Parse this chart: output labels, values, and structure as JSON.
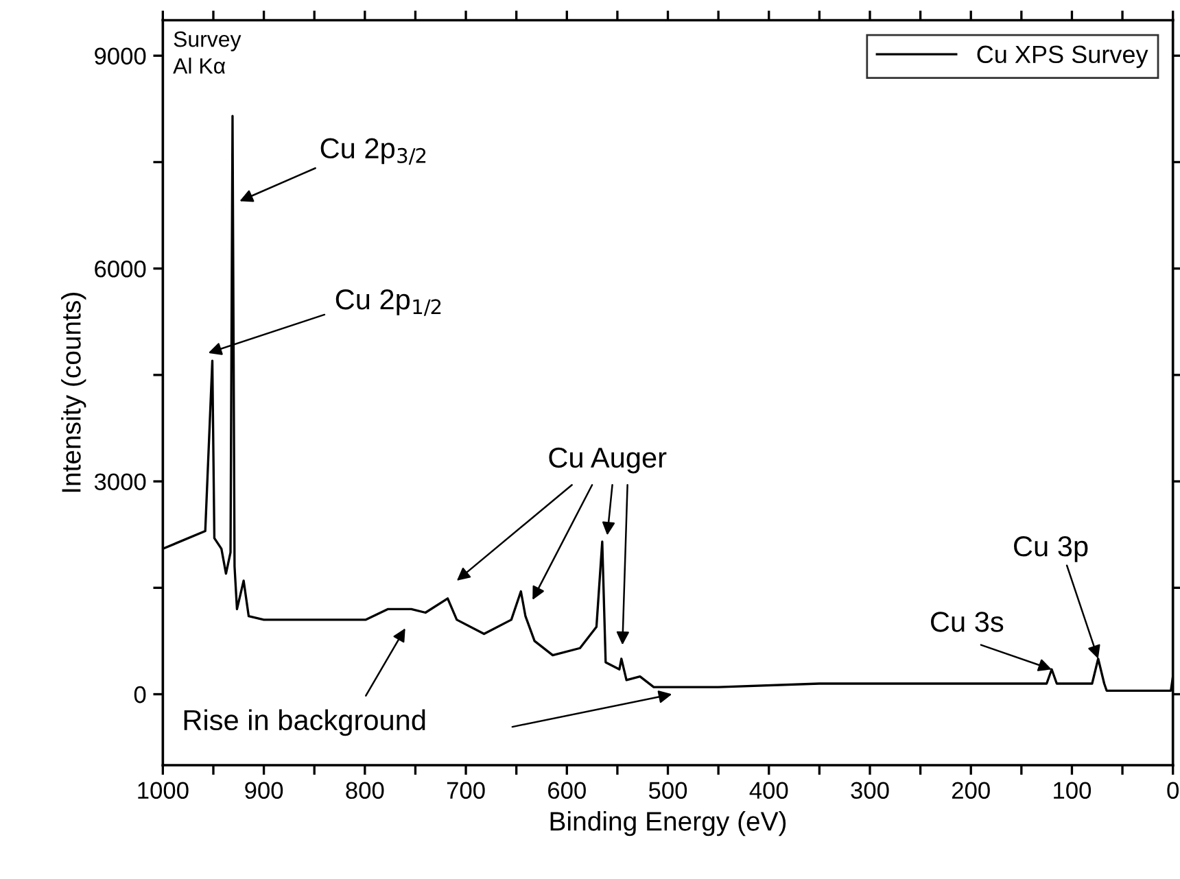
{
  "chart_data": {
    "type": "line",
    "xlabel": "Binding Energy (eV)",
    "ylabel": "Intensity (counts)",
    "series": [
      {
        "name": "Cu XPS Survey",
        "color": "#000000",
        "x": [
          1000,
          958,
          951,
          949,
          942,
          937.5,
          933,
          931,
          929,
          926.6,
          920,
          915,
          900,
          860,
          820,
          799,
          777,
          754,
          740,
          718,
          709,
          682,
          655,
          645.5,
          641,
          632,
          614,
          587,
          570.7,
          565,
          561.6,
          548,
          546,
          541,
          527.6,
          514,
          450,
          350,
          250,
          150,
          125,
          120,
          115,
          80,
          74,
          68,
          65.6,
          40,
          10,
          2,
          0
        ],
        "values": [
          2050,
          2300,
          4700,
          2200,
          2050,
          1700,
          2000,
          8150,
          1800,
          1200,
          1600,
          1100,
          1050,
          1050,
          1050,
          1050,
          1200,
          1200,
          1150,
          1350,
          1050,
          850,
          1050,
          1450,
          1100,
          750,
          550,
          650,
          950,
          2150,
          450,
          350,
          500,
          200,
          250,
          100,
          100,
          150,
          150,
          150,
          150,
          350,
          150,
          150,
          500,
          150,
          50,
          50,
          50,
          50,
          250
        ]
      }
    ],
    "xlim": [
      1000,
      0
    ],
    "ylim": [
      -1000,
      9500
    ],
    "xticks": [
      1000,
      {
        "value": 950,
        "label": null
      },
      900,
      {
        "value": 850,
        "label": null
      },
      800,
      {
        "value": 750,
        "label": null
      },
      700,
      {
        "value": 650,
        "label": null
      },
      600,
      {
        "value": 550,
        "label": null
      },
      500,
      {
        "value": 450,
        "label": null
      },
      400,
      {
        "value": 350,
        "label": null
      },
      300,
      {
        "value": 250,
        "label": null
      },
      200,
      {
        "value": 150,
        "label": null
      },
      100,
      {
        "value": 50,
        "label": null
      },
      0
    ],
    "yticks": [
      0,
      {
        "value": 1500,
        "label": null
      },
      3000,
      {
        "value": 4500,
        "label": null
      },
      6000,
      {
        "value": 7500,
        "label": null
      },
      9000
    ],
    "annotations": [
      "Survey\nAl Kα",
      "Cu 2p$_{3/2}$",
      "Cu 2p$_{1/2}$",
      "Cu Auger",
      "Rise in background",
      {
        "text": "Cu 3s",
        "x": 120,
        "y": 350
      },
      {
        "text": "Cu 3p",
        "x": 74,
        "y": 500
      }
    ],
    "legend": "top right",
    "grid": false,
    "marker": "none",
    "line_style": "solid"
  }
}
